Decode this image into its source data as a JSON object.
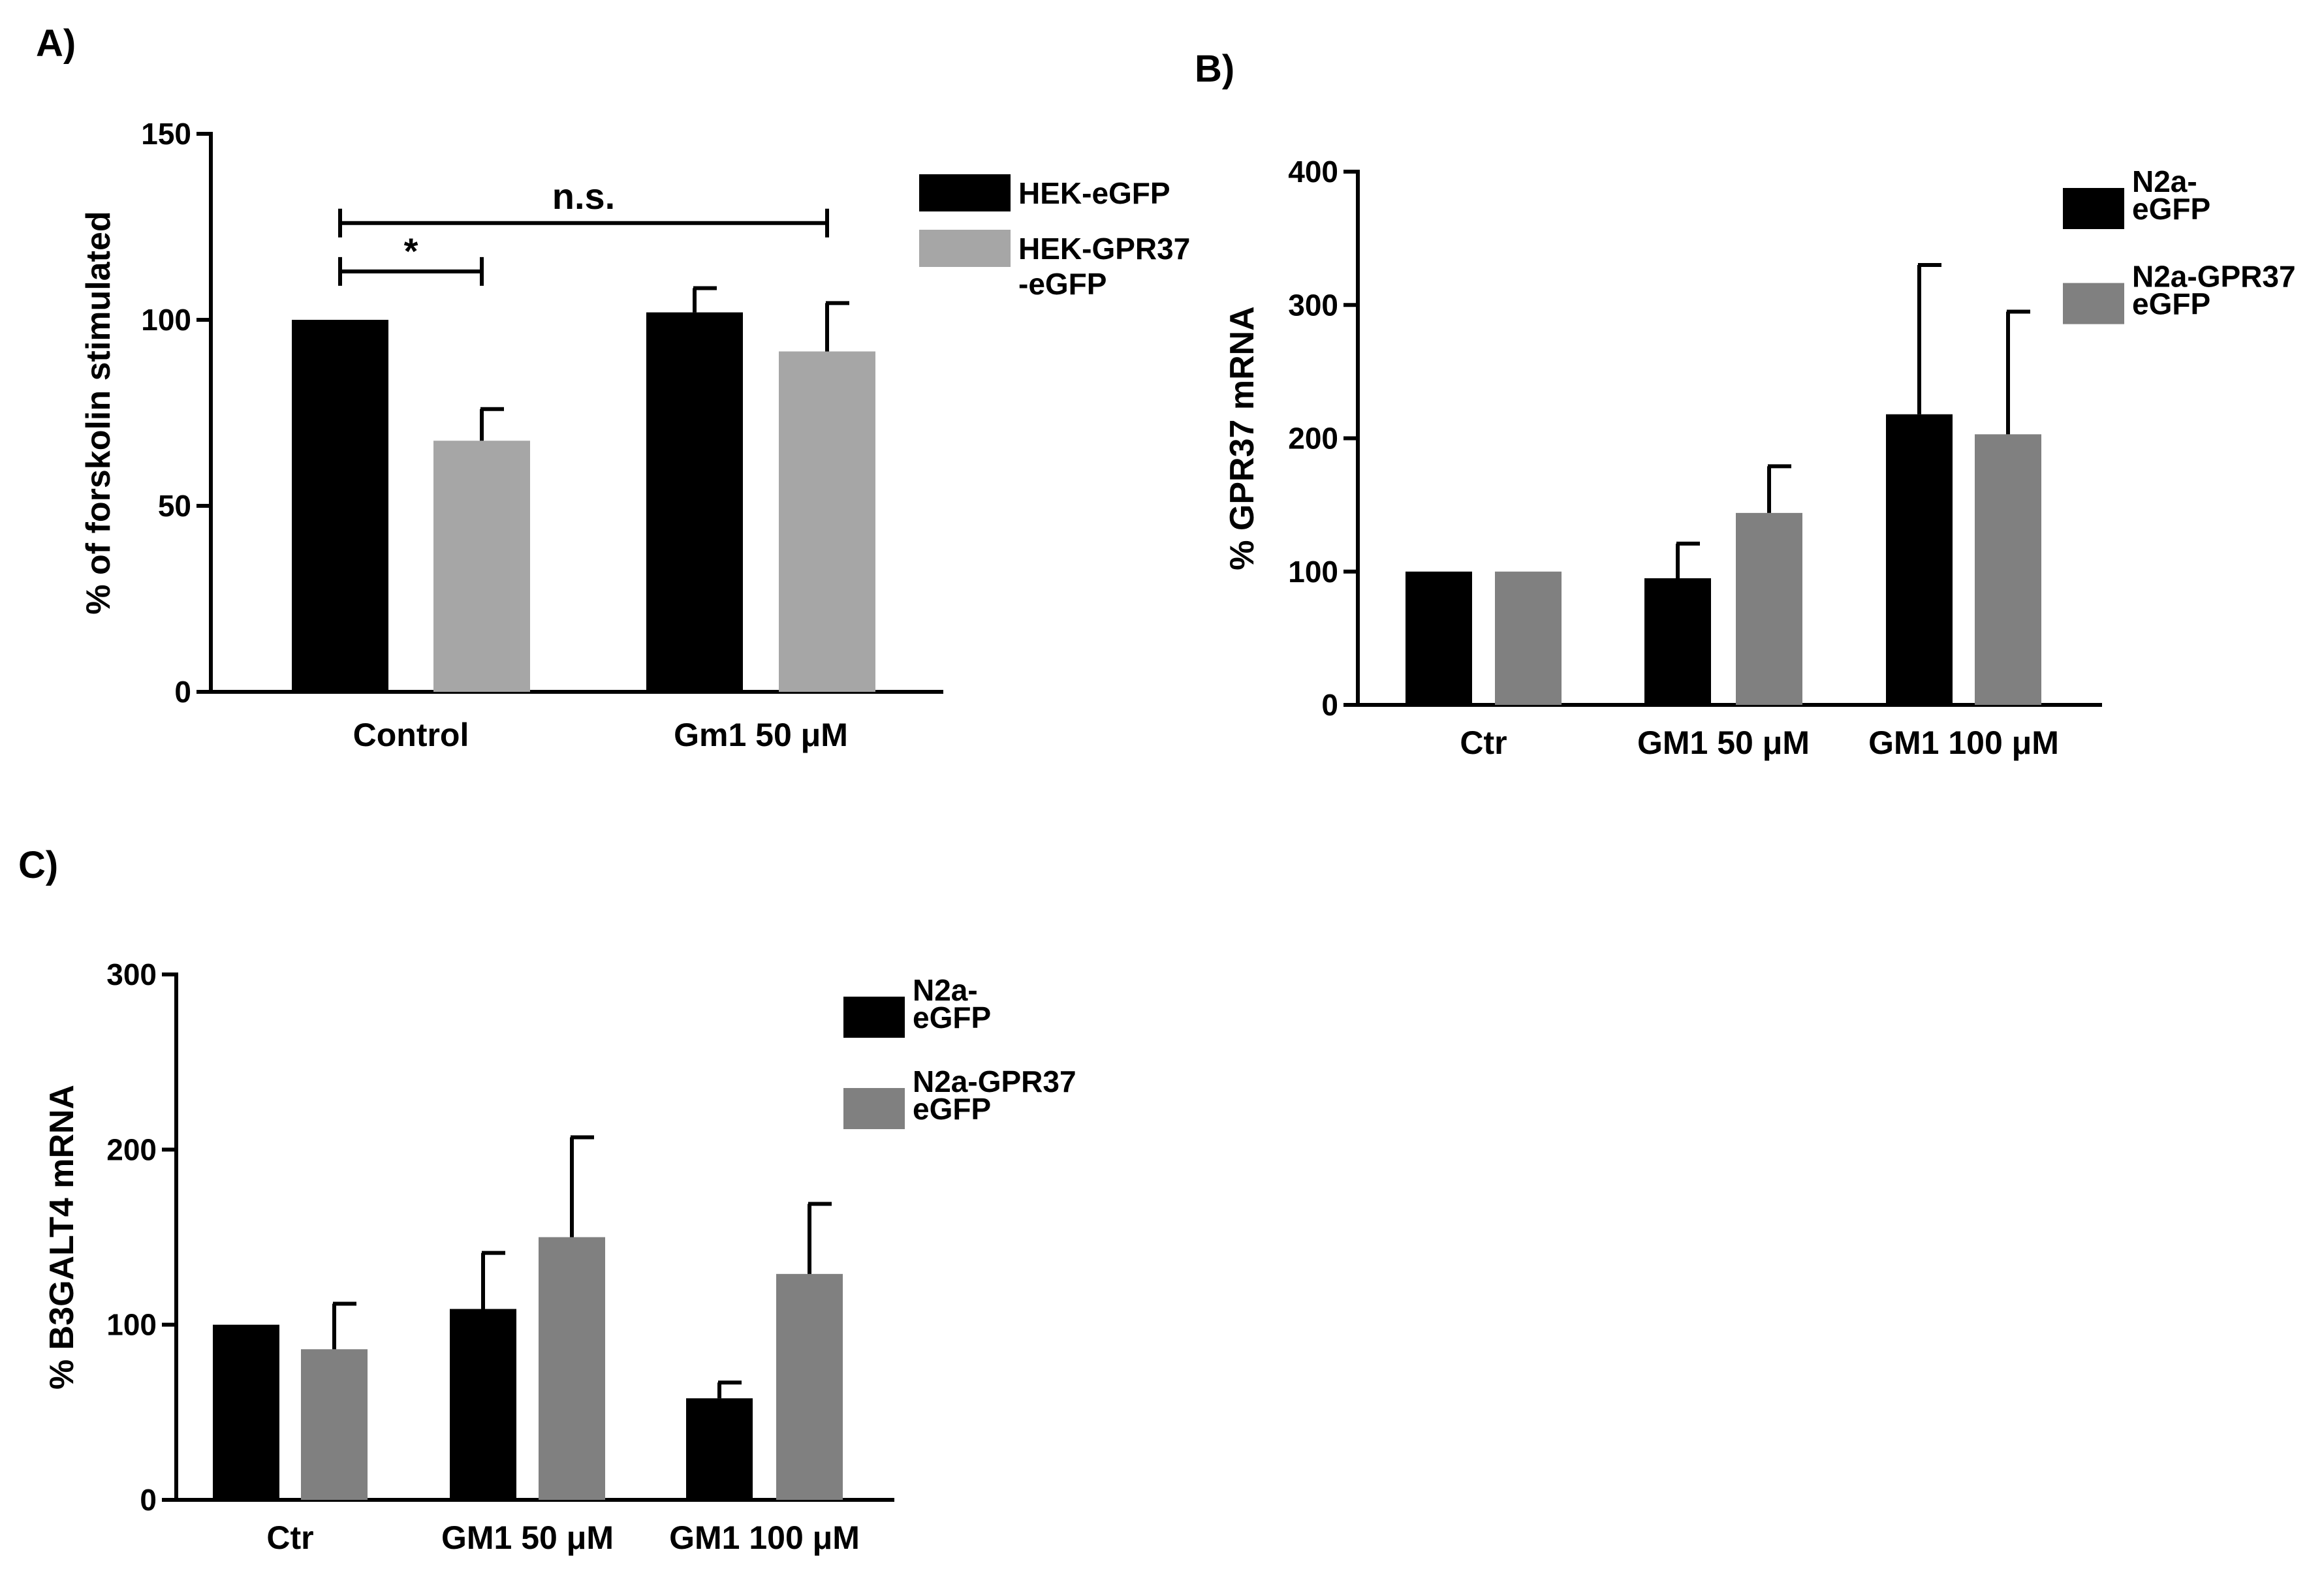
{
  "chart_data": [
    {
      "id": "A",
      "type": "bar",
      "panel_label": "A)",
      "title": "",
      "xlabel": "",
      "ylabel": "% of forskolin stimulated",
      "ylim": [
        0,
        150
      ],
      "yticks": [
        0,
        50,
        100,
        150
      ],
      "categories": [
        "Control",
        "Gm1 50 μM"
      ],
      "series": [
        {
          "name": "HEK-eGFP",
          "label_lines": [
            "HEK-eGFP"
          ],
          "color": "#000000",
          "values": [
            100,
            102
          ],
          "errors": [
            0,
            6.5
          ]
        },
        {
          "name": "HEK-GPR37 -eGFP",
          "label_lines": [
            "HEK-GPR37",
            "-eGFP"
          ],
          "color": "#a6a6a6",
          "values": [
            67.5,
            91.5
          ],
          "errors": [
            8.5,
            13
          ]
        }
      ],
      "significance": [
        {
          "text": "*",
          "from": "Control|HEK-eGFP",
          "to": "Control|HEK-GPR37 -eGFP",
          "y": 113
        },
        {
          "text": "n.s.",
          "from": "Control|HEK-eGFP",
          "to": "Gm1 50 μM|HEK-GPR37 -eGFP",
          "y": 126
        }
      ],
      "legend_position": "top-right"
    },
    {
      "id": "B",
      "type": "bar",
      "panel_label": "B)",
      "title": "",
      "xlabel": "",
      "ylabel": "% GPR37 mRNA",
      "ylim": [
        0,
        400
      ],
      "yticks": [
        0,
        100,
        200,
        300,
        400
      ],
      "categories": [
        "Ctr",
        "GM1 50 μM",
        "GM1 100 μM"
      ],
      "series": [
        {
          "name": "N2a- eGFP",
          "label_lines": [
            "N2a-",
            "eGFP"
          ],
          "color": "#000000",
          "values": [
            100,
            95,
            218
          ],
          "errors": [
            0,
            26,
            112
          ]
        },
        {
          "name": "N2a-GPR37 eGFP",
          "label_lines": [
            "N2a-GPR37",
            "eGFP"
          ],
          "color": "#808080",
          "values": [
            100,
            144,
            203
          ],
          "errors": [
            0,
            35,
            92
          ]
        }
      ],
      "legend_position": "top-right"
    },
    {
      "id": "C",
      "type": "bar",
      "panel_label": "C)",
      "title": "",
      "xlabel": "",
      "ylabel": "% B3GALT4 mRNA",
      "ylim": [
        0,
        300
      ],
      "yticks": [
        0,
        100,
        200,
        300
      ],
      "categories": [
        "Ctr",
        "GM1 50 μM",
        "GM1 100 μM"
      ],
      "series": [
        {
          "name": "N2a- eGFP",
          "label_lines": [
            "N2a-",
            "eGFP"
          ],
          "color": "#000000",
          "values": [
            100,
            109,
            58
          ],
          "errors": [
            0,
            32,
            9
          ]
        },
        {
          "name": "N2a-GPR37 eGFP",
          "label_lines": [
            "N2a-GPR37",
            "eGFP"
          ],
          "color": "#808080",
          "values": [
            86,
            150,
            129
          ],
          "errors": [
            26,
            57,
            40
          ]
        }
      ],
      "legend_position": "top-right"
    }
  ]
}
